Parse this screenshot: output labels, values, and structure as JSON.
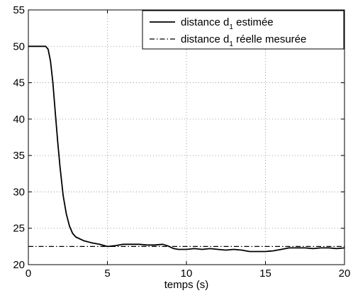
{
  "chart_data": {
    "type": "line",
    "xlabel": "temps (s)",
    "ylabel": "",
    "xlim": [
      0,
      20
    ],
    "ylim": [
      20,
      55
    ],
    "x_ticks": [
      "0",
      "5",
      "10",
      "15",
      "20"
    ],
    "y_ticks": [
      "20",
      "25",
      "30",
      "35",
      "40",
      "45",
      "50",
      "55"
    ],
    "x_tick_values": [
      0,
      5,
      10,
      15,
      20
    ],
    "y_tick_values": [
      20,
      25,
      30,
      35,
      40,
      45,
      50,
      55
    ],
    "grid": "dotted",
    "legend_position": "top-right",
    "series": [
      {
        "name_parts": [
          "distance d",
          "1",
          " estimée"
        ],
        "style": "solid",
        "color": "#000000",
        "x": [
          0,
          1.1,
          1.25,
          1.4,
          1.55,
          1.7,
          1.85,
          2.0,
          2.2,
          2.4,
          2.6,
          2.8,
          3.0,
          3.5,
          4.0,
          4.5,
          5.0,
          5.5,
          6.0,
          6.5,
          7.0,
          7.5,
          8.0,
          8.5,
          8.8,
          9.2,
          9.5,
          10.0,
          10.5,
          11.0,
          11.5,
          12.0,
          12.5,
          13.0,
          13.5,
          14.0,
          14.5,
          15.0,
          15.5,
          16.0,
          16.5,
          17.0,
          17.5,
          18.0,
          18.5,
          19.0,
          19.5,
          20.0
        ],
        "y": [
          50,
          50,
          49.6,
          48.0,
          45.0,
          41.0,
          37.0,
          33.5,
          29.5,
          27.0,
          25.3,
          24.3,
          23.8,
          23.3,
          23.0,
          22.8,
          22.5,
          22.6,
          22.8,
          22.8,
          22.8,
          22.7,
          22.7,
          22.8,
          22.6,
          22.2,
          22.1,
          22.1,
          22.2,
          22.1,
          22.2,
          22.1,
          22.0,
          22.1,
          22.0,
          21.8,
          21.8,
          21.8,
          21.9,
          22.1,
          22.3,
          22.3,
          22.3,
          22.2,
          22.3,
          22.3,
          22.2,
          22.3
        ]
      },
      {
        "name_parts": [
          "distance d",
          "1",
          " réelle mesurée"
        ],
        "style": "dashdot",
        "color": "#000000",
        "x": [
          0,
          20
        ],
        "y": [
          22.5,
          22.5
        ]
      }
    ]
  }
}
